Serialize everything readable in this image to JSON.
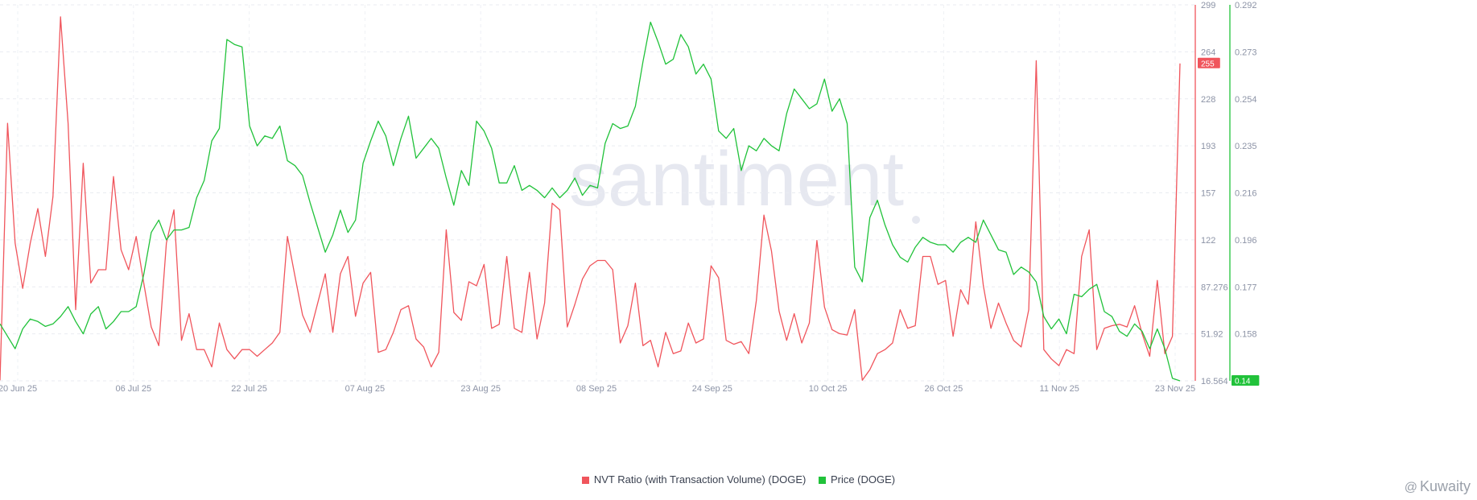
{
  "watermark": "santiment",
  "branding": "Kuwaity",
  "chart_data": {
    "type": "line",
    "x_ticks": [
      "20 Jun 25",
      "06 Jul 25",
      "22 Jul 25",
      "07 Aug 25",
      "23 Aug 25",
      "08 Sep 25",
      "24 Sep 25",
      "10 Oct 25",
      "26 Oct 25",
      "11 Nov 25",
      "23 Nov 25"
    ],
    "x_range": [
      "2025-06-20",
      "2025-11-23"
    ],
    "grid": true,
    "legend": "bottom-center",
    "left_axis": {
      "ticks": [
        "299",
        "264",
        "228",
        "193",
        "157",
        "122",
        "87.276",
        "51.92",
        "16.564"
      ],
      "ylim": [
        16.564,
        299
      ],
      "current_value": "255",
      "color": "#f0555c"
    },
    "right_axis": {
      "ticks": [
        "0.292",
        "0.273",
        "0.254",
        "0.235",
        "0.216",
        "0.196",
        "0.177",
        "0.158",
        "0.14"
      ],
      "ylim": [
        0.14,
        0.292
      ],
      "current_value": "0.14",
      "color": "#21c23a"
    },
    "series": [
      {
        "name": "NVT Ratio (with Transaction Volume) (DOGE)",
        "axis": "left",
        "color": "#f0555c",
        "values": [
          17,
          210,
          120,
          86,
          120,
          146,
          110,
          155,
          290,
          210,
          70,
          180,
          90,
          100,
          100,
          170,
          115,
          100,
          125,
          90,
          57,
          43,
          120,
          145,
          47,
          67,
          40,
          40,
          27,
          60,
          40,
          33,
          40,
          40,
          35,
          40,
          45,
          53,
          125,
          95,
          66,
          53,
          75,
          97,
          53,
          97,
          110,
          65,
          90,
          98,
          38,
          40,
          53,
          70,
          73,
          48,
          42,
          27,
          38,
          130,
          68,
          62,
          91,
          88,
          104,
          56,
          59,
          110,
          56,
          53,
          98,
          48,
          75,
          150,
          145,
          57,
          74,
          93,
          103,
          107,
          107,
          100,
          45,
          58,
          90,
          43,
          47,
          27,
          53,
          37,
          39,
          60,
          45,
          48,
          103,
          94,
          47,
          44,
          46,
          37,
          77,
          141,
          114,
          69,
          47,
          67,
          45,
          60,
          122,
          72,
          55,
          52,
          51,
          70,
          17,
          25,
          37,
          40,
          45,
          70,
          56,
          58,
          110,
          110,
          89,
          92,
          50,
          85,
          74,
          136,
          88,
          56,
          75,
          60,
          47,
          42,
          70,
          257,
          40,
          33,
          28,
          40,
          37,
          110,
          130,
          40,
          56,
          58,
          59,
          57,
          73,
          52,
          35,
          92,
          37,
          50,
          255
        ]
      },
      {
        "name": "Price (DOGE)",
        "axis": "right",
        "color": "#21c23a",
        "values": [
          0.163,
          0.158,
          0.153,
          0.161,
          0.165,
          0.164,
          0.162,
          0.163,
          0.166,
          0.17,
          0.164,
          0.159,
          0.167,
          0.17,
          0.161,
          0.164,
          0.168,
          0.168,
          0.17,
          0.183,
          0.2,
          0.205,
          0.197,
          0.201,
          0.201,
          0.202,
          0.214,
          0.221,
          0.237,
          0.242,
          0.278,
          0.276,
          0.275,
          0.243,
          0.235,
          0.239,
          0.238,
          0.243,
          0.229,
          0.227,
          0.223,
          0.212,
          0.202,
          0.192,
          0.199,
          0.209,
          0.2,
          0.205,
          0.228,
          0.237,
          0.245,
          0.239,
          0.227,
          0.238,
          0.247,
          0.23,
          0.234,
          0.238,
          0.234,
          0.222,
          0.211,
          0.225,
          0.219,
          0.245,
          0.241,
          0.234,
          0.22,
          0.22,
          0.227,
          0.217,
          0.219,
          0.217,
          0.214,
          0.218,
          0.214,
          0.217,
          0.222,
          0.215,
          0.219,
          0.218,
          0.236,
          0.244,
          0.242,
          0.243,
          0.251,
          0.269,
          0.285,
          0.277,
          0.268,
          0.27,
          0.28,
          0.275,
          0.264,
          0.268,
          0.262,
          0.241,
          0.238,
          0.242,
          0.225,
          0.235,
          0.233,
          0.238,
          0.235,
          0.233,
          0.248,
          0.258,
          0.254,
          0.25,
          0.252,
          0.262,
          0.249,
          0.254,
          0.244,
          0.186,
          0.18,
          0.206,
          0.213,
          0.203,
          0.195,
          0.19,
          0.188,
          0.194,
          0.198,
          0.196,
          0.195,
          0.195,
          0.192,
          0.196,
          0.198,
          0.196,
          0.205,
          0.199,
          0.193,
          0.192,
          0.183,
          0.186,
          0.184,
          0.18,
          0.166,
          0.161,
          0.165,
          0.159,
          0.175,
          0.174,
          0.177,
          0.179,
          0.168,
          0.166,
          0.16,
          0.158,
          0.163,
          0.16,
          0.153,
          0.161,
          0.153,
          0.141,
          0.14
        ]
      }
    ]
  }
}
